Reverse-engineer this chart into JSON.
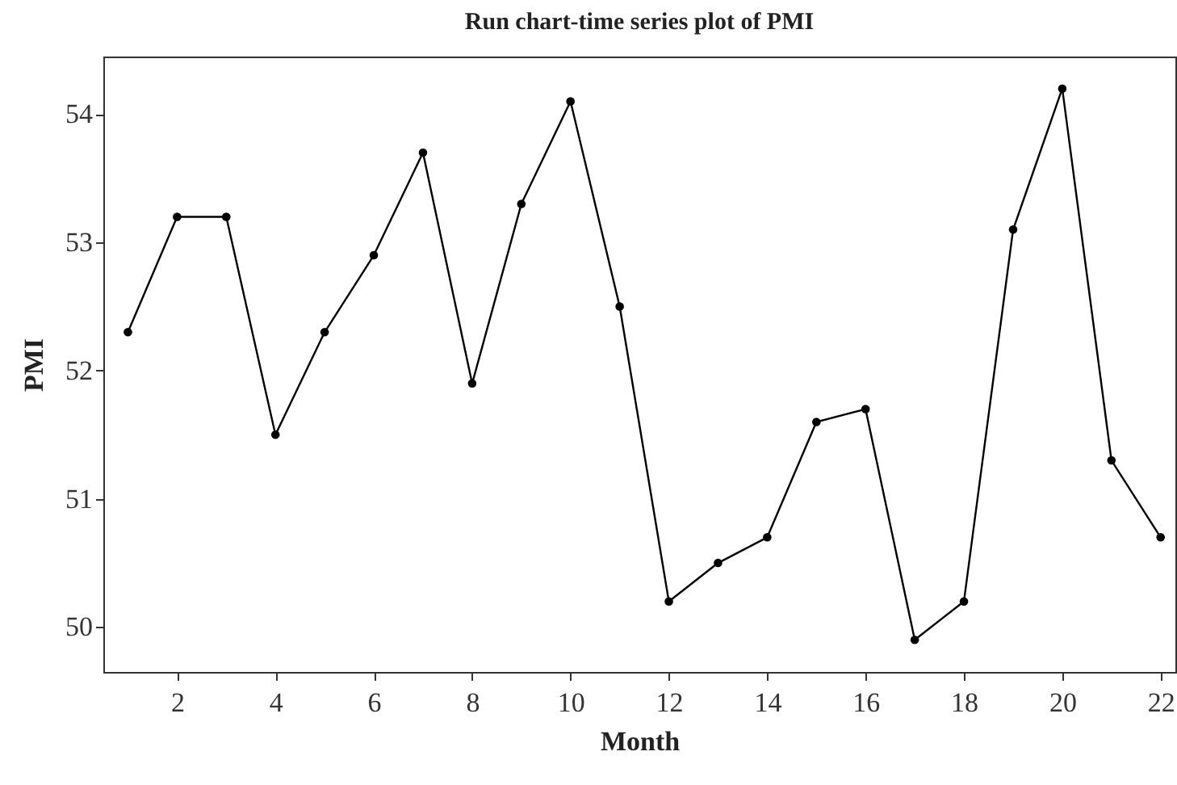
{
  "chart_data": {
    "type": "line",
    "title": "Run chart-time series plot of PMI",
    "xlabel": "Month",
    "ylabel": "PMI",
    "x": [
      1,
      2,
      3,
      4,
      5,
      6,
      7,
      8,
      9,
      10,
      11,
      12,
      13,
      14,
      15,
      16,
      17,
      18,
      19,
      20,
      21,
      22
    ],
    "series": [
      {
        "color": "#000000",
        "values": [
          52.3,
          53.2,
          53.2,
          51.5,
          52.3,
          52.9,
          53.7,
          51.9,
          53.3,
          54.1,
          52.5,
          50.2,
          50.5,
          50.7,
          51.6,
          51.7,
          49.9,
          50.2,
          53.1,
          54.2,
          51.3,
          50.7
        ]
      }
    ],
    "xlim": [
      0.5,
      22.3
    ],
    "ylim": [
      49.65,
      54.45
    ],
    "xticks": [
      2,
      4,
      6,
      8,
      10,
      12,
      14,
      16,
      18,
      20,
      22
    ],
    "yticks": [
      50,
      51,
      52,
      53,
      54
    ],
    "marker": "circle",
    "line_style": "solid"
  }
}
